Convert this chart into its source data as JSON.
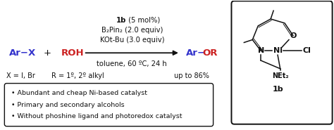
{
  "bg_color": "#ffffff",
  "blue_color": "#3333cc",
  "red_color": "#cc2222",
  "black_color": "#111111",
  "cond1_bold": "1b",
  "cond1_rest": " (5 mol%)",
  "cond2": "B₂Pin₂ (2.0 equiv)",
  "cond3": "KOt-Bu (3.0 equiv)",
  "cond4": "toluene, 60 ºC, 24 h",
  "sub1": "X = I, Br",
  "sub2": "R = 1º, 2º alkyl",
  "yield_txt": "up to 86%",
  "bullet_points": [
    "• Abundant and cheap Ni-based catalyst",
    "• Primary and secondary alcohols",
    "• Without phoshine ligand and photoredox catalyst"
  ],
  "struct_label": "1b"
}
